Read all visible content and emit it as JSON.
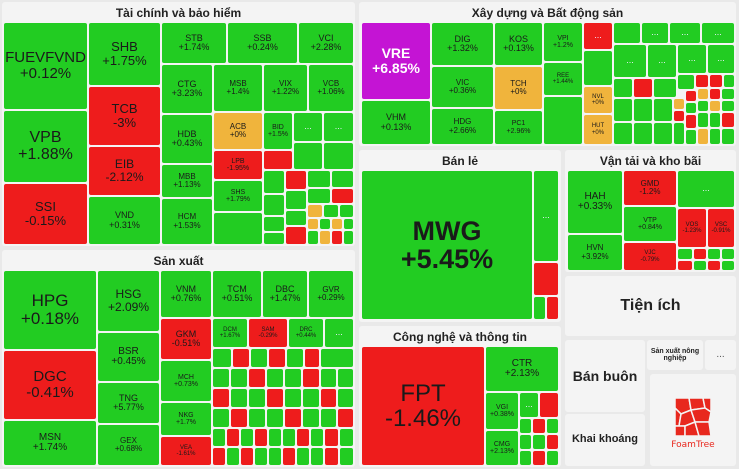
{
  "sections": {
    "finance": {
      "title": "Tài chính và bảo hiểm"
    },
    "construction": {
      "title": "Xây dựng và Bất động sản"
    },
    "retail": {
      "title": "Bán lẻ"
    },
    "transport": {
      "title": "Vận tải và kho bãi"
    },
    "manufacturing": {
      "title": "Sản xuất"
    },
    "tech": {
      "title": "Công nghệ và thông tin"
    },
    "utilities": {
      "title": "Tiện ích"
    },
    "wholesale": {
      "title": "Bán buôn"
    },
    "mining": {
      "title": "Khai khoáng"
    },
    "agri": {
      "title": "Sản xuất nông nghiệp"
    }
  },
  "tiles": {
    "FUEVFVND": {
      "sym": "FUEVFVND",
      "chg": "+0.12%"
    },
    "VPB": {
      "sym": "VPB",
      "chg": "+1.88%"
    },
    "SSI": {
      "sym": "SSI",
      "chg": "-0.15%"
    },
    "SHB": {
      "sym": "SHB",
      "chg": "+1.75%"
    },
    "TCB": {
      "sym": "TCB",
      "chg": "-3%"
    },
    "EIB": {
      "sym": "EIB",
      "chg": "-2.12%"
    },
    "VND": {
      "sym": "VND",
      "chg": "+0.31%"
    },
    "STB": {
      "sym": "STB",
      "chg": "+1.74%"
    },
    "SSB": {
      "sym": "SSB",
      "chg": "+0.24%"
    },
    "VCI": {
      "sym": "VCI",
      "chg": "+2.28%"
    },
    "CTG": {
      "sym": "CTG",
      "chg": "+3.23%"
    },
    "MSB": {
      "sym": "MSB",
      "chg": "+1.4%"
    },
    "VIX": {
      "sym": "VIX",
      "chg": "+1.22%"
    },
    "VCB": {
      "sym": "VCB",
      "chg": "+1.06%"
    },
    "HDB": {
      "sym": "HDB",
      "chg": "+0.43%"
    },
    "ACB": {
      "sym": "ACB",
      "chg": "+0%"
    },
    "BID": {
      "sym": "BID",
      "chg": "+1.5%"
    },
    "MBB": {
      "sym": "MBB",
      "chg": "+1.13%"
    },
    "LPB": {
      "sym": "LPB",
      "chg": "-1.95%"
    },
    "SHS": {
      "sym": "SHS",
      "chg": "+1.79%"
    },
    "HCM": {
      "sym": "HCM",
      "chg": "+1.53%"
    },
    "VRE": {
      "sym": "VRE",
      "chg": "+6.85%"
    },
    "DIG": {
      "sym": "DIG",
      "chg": "+1.32%"
    },
    "KOS": {
      "sym": "KOS",
      "chg": "+0.13%"
    },
    "VPI": {
      "sym": "VPI",
      "chg": "+1.2%"
    },
    "VIC": {
      "sym": "VIC",
      "chg": "+0.36%"
    },
    "TCH": {
      "sym": "TCH",
      "chg": "+0%"
    },
    "REE": {
      "sym": "REE",
      "chg": "+1.44%"
    },
    "VHM": {
      "sym": "VHM",
      "chg": "+0.13%"
    },
    "HDG": {
      "sym": "HDG",
      "chg": "+2.66%"
    },
    "PC1": {
      "sym": "PC1",
      "chg": "+2.96%"
    },
    "NVL": {
      "sym": "NVL",
      "chg": "+0%"
    },
    "HUT": {
      "sym": "HUT",
      "chg": "+0%"
    },
    "MWG": {
      "sym": "MWG",
      "chg": "+5.45%"
    },
    "HAH": {
      "sym": "HAH",
      "chg": "+0.33%"
    },
    "GMD": {
      "sym": "GMD",
      "chg": "-1.2%"
    },
    "VTP": {
      "sym": "VTP",
      "chg": "+0.84%"
    },
    "HVN": {
      "sym": "HVN",
      "chg": "+3.92%"
    },
    "VJC": {
      "sym": "VJC",
      "chg": "-0.79%"
    },
    "VOS": {
      "sym": "VOS",
      "chg": "-1.23%"
    },
    "VSC": {
      "sym": "VSC",
      "chg": "-0.91%"
    },
    "HPG": {
      "sym": "HPG",
      "chg": "+0.18%"
    },
    "DGC": {
      "sym": "DGC",
      "chg": "-0.41%"
    },
    "MSN": {
      "sym": "MSN",
      "chg": "+1.74%"
    },
    "HSG": {
      "sym": "HSG",
      "chg": "+2.09%"
    },
    "BSR": {
      "sym": "BSR",
      "chg": "+0.45%"
    },
    "TNG": {
      "sym": "TNG",
      "chg": "+5.77%"
    },
    "GEX": {
      "sym": "GEX",
      "chg": "+0.68%"
    },
    "VNM": {
      "sym": "VNM",
      "chg": "+0.76%"
    },
    "TCM": {
      "sym": "TCM",
      "chg": "+0.51%"
    },
    "DBC": {
      "sym": "DBC",
      "chg": "+1.47%"
    },
    "GVR": {
      "sym": "GVR",
      "chg": "+0.29%"
    },
    "GKM": {
      "sym": "GKM",
      "chg": "-0.51%"
    },
    "DCM": {
      "sym": "DCM",
      "chg": "+1.67%"
    },
    "SAM": {
      "sym": "SAM",
      "chg": "-0.29%"
    },
    "DRC": {
      "sym": "DRC",
      "chg": "+0.44%"
    },
    "MCH": {
      "sym": "MCH",
      "chg": "+0.73%"
    },
    "NKG": {
      "sym": "NKG",
      "chg": "+1.7%"
    },
    "VEA": {
      "sym": "VEA",
      "chg": "-1.61%"
    },
    "FPT": {
      "sym": "FPT",
      "chg": "-1.46%"
    },
    "CTR": {
      "sym": "CTR",
      "chg": "+2.13%"
    },
    "VGI": {
      "sym": "VGI",
      "chg": "+0.38%"
    },
    "CMG": {
      "sym": "CMG",
      "chg": "+2.13%"
    }
  },
  "ellipsis": "...",
  "logo": {
    "text": "FoamTree",
    "color": "#e8281e"
  }
}
